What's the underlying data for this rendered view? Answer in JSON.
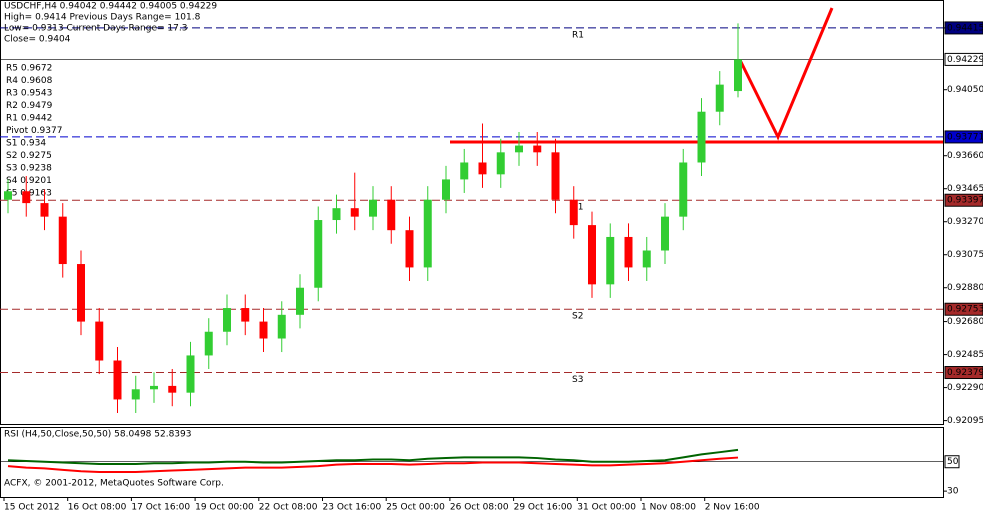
{
  "chart_data": {
    "type": "candlestick",
    "title": "USDCHF,H4  0.94042 0.94442 0.94005 0.94229",
    "info": [
      "High= 0.9414    Previous Days Range= 101.8",
      "Low= 0.9313    Current Days Range= 17.3",
      "Close= 0.9404"
    ],
    "pivots": [
      "R5 0.9672",
      "R4 0.9608",
      "R3 0.9543",
      "R2 0.9479",
      "R1 0.9442",
      "Pivot 0.9377",
      "S1 0.934",
      "S2 0.9275",
      "S3 0.9238",
      "S4 0.9201",
      "S5 0.9163"
    ],
    "categories": [
      "15 Oct 2012",
      "16 Oct 08:00",
      "17 Oct 16:00",
      "19 Oct 00:00",
      "22 Oct 08:00",
      "23 Oct 16:00",
      "25 Oct 00:00",
      "26 Oct 08:00",
      "29 Oct 16:00",
      "31 Oct 00:00",
      "1 Nov 08:00",
      "2 Nov 16:00"
    ],
    "open": [
      0.934,
      0.9345,
      0.9338,
      0.933,
      0.9302,
      0.9268,
      0.9245,
      0.9222,
      0.9228,
      0.923,
      0.9226,
      0.9248,
      0.9262,
      0.9276,
      0.9268,
      0.9258,
      0.9272,
      0.9288,
      0.9328,
      0.9335,
      0.933,
      0.934,
      0.9322,
      0.93,
      0.934,
      0.9352,
      0.9362,
      0.9355,
      0.9368,
      0.9372,
      0.9368,
      0.934,
      0.9325,
      0.929,
      0.9318,
      0.93,
      0.931,
      0.933,
      0.9362,
      0.9392,
      0.94042
    ],
    "high": [
      0.9352,
      0.9354,
      0.9346,
      0.9338,
      0.931,
      0.9276,
      0.9253,
      0.9236,
      0.9238,
      0.924,
      0.9256,
      0.927,
      0.9284,
      0.9284,
      0.9276,
      0.928,
      0.9296,
      0.9336,
      0.9343,
      0.9356,
      0.9348,
      0.9348,
      0.933,
      0.9348,
      0.936,
      0.937,
      0.9385,
      0.9376,
      0.938,
      0.938,
      0.9376,
      0.9348,
      0.9333,
      0.9326,
      0.9326,
      0.9318,
      0.9338,
      0.937,
      0.94,
      0.9416,
      0.94442
    ],
    "low": [
      0.9332,
      0.933,
      0.9322,
      0.9294,
      0.926,
      0.9237,
      0.9214,
      0.9214,
      0.922,
      0.9218,
      0.9218,
      0.924,
      0.9254,
      0.926,
      0.925,
      0.925,
      0.9264,
      0.928,
      0.932,
      0.9322,
      0.9322,
      0.9314,
      0.9292,
      0.9292,
      0.9332,
      0.9344,
      0.9347,
      0.9347,
      0.936,
      0.936,
      0.9332,
      0.9317,
      0.9282,
      0.9282,
      0.9292,
      0.9292,
      0.9302,
      0.9322,
      0.9354,
      0.9384,
      0.94005
    ],
    "close": [
      0.9345,
      0.9338,
      0.933,
      0.9302,
      0.9268,
      0.9245,
      0.9222,
      0.9228,
      0.923,
      0.9226,
      0.9248,
      0.9262,
      0.9276,
      0.9268,
      0.9258,
      0.9272,
      0.9288,
      0.9328,
      0.9335,
      0.933,
      0.934,
      0.9322,
      0.93,
      0.934,
      0.9352,
      0.9362,
      0.9355,
      0.9368,
      0.9372,
      0.9368,
      0.934,
      0.9325,
      0.929,
      0.9318,
      0.93,
      0.931,
      0.933,
      0.9362,
      0.9392,
      0.9408,
      0.94229
    ],
    "up_color": "#32cd32",
    "down_color": "#ff0000",
    "ylim": [
      0.92069,
      0.9458
    ],
    "yticks": [
      0.94415,
      {
        "value": 0.9405,
        "label": "0.94050"
      },
      {
        "value": 0.9366,
        "label": "0.93660"
      },
      0.93465,
      {
        "value": 0.9327,
        "label": "0.93270"
      },
      0.93075,
      {
        "value": 0.9288,
        "label": "0.92880"
      },
      {
        "value": 0.9268,
        "label": "0.92680"
      },
      0.92485,
      {
        "value": 0.9229,
        "label": "0.92290"
      },
      0.92095
    ],
    "levels": [
      {
        "name": "R1",
        "value": 0.94415,
        "color": "#000080"
      },
      {
        "value": 0.94229,
        "color": "#000000"
      },
      {
        "value": 0.93771,
        "color": "#0000cd"
      },
      {
        "name": "S1",
        "value": 0.93397,
        "color": "#a52a2a"
      },
      {
        "name": "S2",
        "value": 0.92753,
        "color": "#a52a2a"
      },
      {
        "name": "S3",
        "value": 0.92379,
        "color": "#a52a2a"
      }
    ],
    "rsi": {
      "title": "RSI (H4,50,Close,50,50) 58.0498 52.8393",
      "ylim": [
        26,
        75
      ],
      "yticks": [
        50,
        30
      ],
      "series": [
        {
          "color": "#006400",
          "values": [
            51,
            50.5,
            50,
            49.5,
            49,
            48.5,
            48.5,
            48.5,
            49,
            49,
            49.5,
            49.5,
            50,
            50,
            49.5,
            49.5,
            50,
            50.5,
            51,
            51,
            51.5,
            51.5,
            51,
            52,
            52.5,
            53,
            53,
            53,
            53,
            52.5,
            51.5,
            51,
            50,
            50,
            50,
            50.5,
            51,
            53,
            55,
            56.5,
            58.0498
          ]
        },
        {
          "color": "#ff0000",
          "values": [
            47,
            46,
            45.5,
            44.5,
            43.5,
            43,
            43,
            43,
            43.5,
            44,
            44.5,
            45,
            45.5,
            46,
            46,
            46,
            46.5,
            47,
            48,
            48.5,
            48.5,
            48.5,
            48,
            48.5,
            49,
            49,
            49.5,
            49.5,
            49.5,
            49,
            48.5,
            48,
            47.5,
            47.5,
            48,
            48.5,
            49,
            50,
            51,
            52,
            52.8393
          ]
        }
      ]
    },
    "copyright": "ACFX, © 2001-2012, MetaQuotes Software Corp."
  }
}
